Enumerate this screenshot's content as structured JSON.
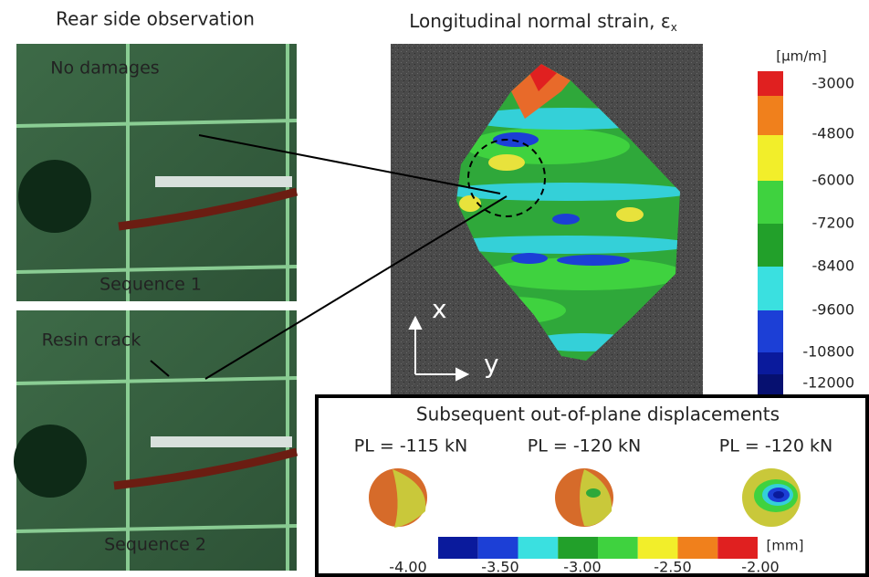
{
  "left": {
    "title": "Rear side observation",
    "panels": [
      {
        "top_label": "No damages",
        "bottom_label": "Sequence 1"
      },
      {
        "top_label": "Resin crack",
        "bottom_label": "Sequence 2"
      }
    ]
  },
  "strain": {
    "title": "Longitudinal normal strain, ε",
    "subscript": "x",
    "unit": "[μm/m]",
    "scale_labels": [
      "-3000",
      "-4800",
      "-6000",
      "-7200",
      "-8400",
      "-9600",
      "-10800",
      "-12000"
    ],
    "axis_x": "x",
    "axis_y": "y"
  },
  "displacement": {
    "title": "Subsequent out-of-plane displacements",
    "loads": [
      "PL = -115 kN",
      "PL = -120 kN",
      "PL = -120 kN"
    ],
    "unit": "[mm]",
    "scale_labels": [
      "-4.00",
      "-3.50",
      "-3.00",
      "-2.50",
      "-2.00"
    ]
  }
}
